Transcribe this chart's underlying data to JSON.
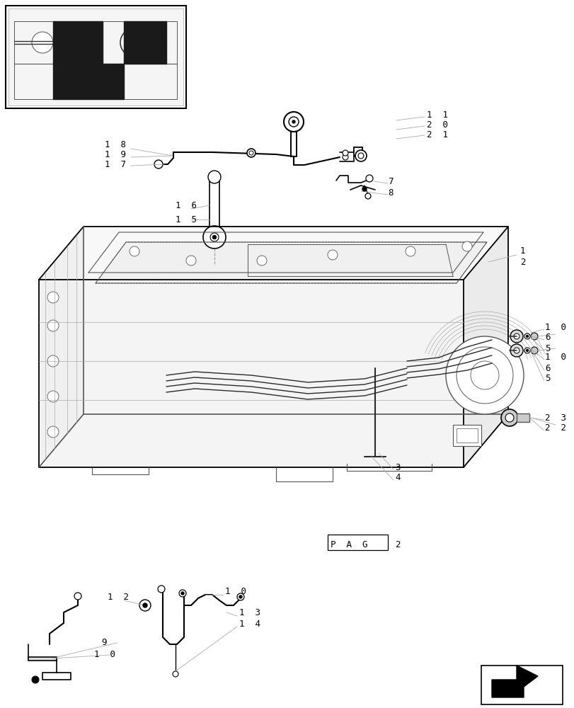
{
  "bg_color": "#ffffff",
  "line_color": "#000000",
  "gray_color": "#555555",
  "light_gray": "#aaaaaa",
  "dashed_color": "#999999",
  "fig_width": 8.12,
  "fig_height": 10.0,
  "dpi": 100
}
